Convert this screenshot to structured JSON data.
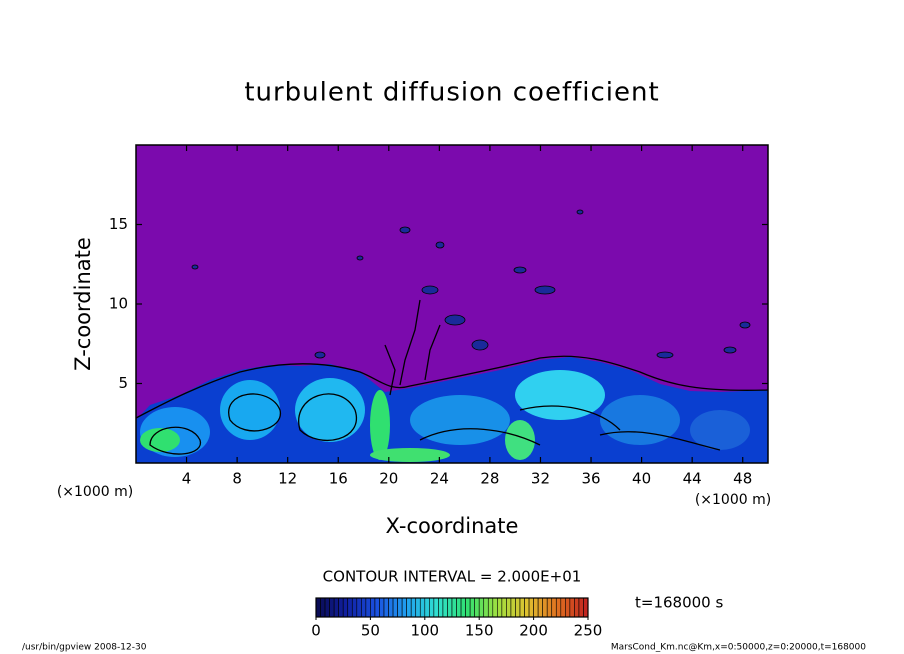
{
  "chart_data": {
    "type": "contour",
    "title": "turbulent diffusion coefficient",
    "x_label": "X-coordinate",
    "y_label": "Z-coordinate",
    "x_unit": "(×1000 m)",
    "y_unit": "(×1000 m)",
    "xlim": [
      0,
      50
    ],
    "xticks": [
      4,
      8,
      12,
      16,
      20,
      24,
      28,
      32,
      36,
      40,
      44,
      48
    ],
    "ylim": [
      0,
      20
    ],
    "yticks": [
      5,
      10,
      15
    ],
    "contour_interval": "CONTOUR INTERVAL = 2.000E+01",
    "time_label": "t=168000 s",
    "colorbar": {
      "clim": [
        0,
        250
      ],
      "ticks": [
        0,
        50,
        100,
        150,
        200,
        250
      ],
      "colors": [
        "#0a0a50",
        "#1020a0",
        "#1a50e0",
        "#20a0f0",
        "#30e0d0",
        "#30e070",
        "#a0e040",
        "#e0c030",
        "#e07020",
        "#c02020"
      ]
    },
    "footer_left": "/usr/bin/gpview   2008-12-30",
    "footer_right": "MarsCond_Km.nc@Km,x=0:50000,z=0:20000,t=168000"
  }
}
